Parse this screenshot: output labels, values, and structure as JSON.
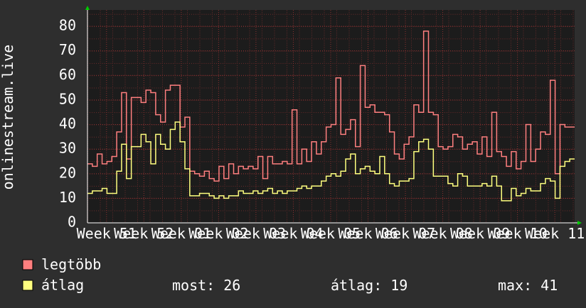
{
  "chart_data": {
    "type": "line",
    "y_label": "onlinestream.live",
    "xlim": [
      -0.51,
      12.53
    ],
    "xticks": [
      {
        "value": 0,
        "label": "Week 51"
      },
      {
        "value": 1,
        "label": "Week 52"
      },
      {
        "value": 2,
        "label": "Week 01"
      },
      {
        "value": 3,
        "label": "Week 02"
      },
      {
        "value": 4,
        "label": "Week 03"
      },
      {
        "value": 5,
        "label": "Week 04"
      },
      {
        "value": 6,
        "label": "Week 05"
      },
      {
        "value": 7,
        "label": "Week 06"
      },
      {
        "value": 8,
        "label": "Week 07"
      },
      {
        "value": 9,
        "label": "Week 08"
      },
      {
        "value": 10,
        "label": "Week 09"
      },
      {
        "value": 11,
        "label": "Week 10"
      },
      {
        "value": 12,
        "label": "Week 11"
      }
    ],
    "ylim": [
      0,
      80
    ],
    "yticks": [
      0,
      10,
      20,
      30,
      40,
      50,
      60,
      70,
      80
    ],
    "grid": true,
    "series": [
      {
        "name": "legtöbb",
        "color": "#ff7f7f",
        "values": [
          24,
          23,
          28,
          24,
          25,
          27,
          37,
          53,
          26,
          51,
          51,
          49,
          54,
          53,
          44,
          41,
          54,
          56,
          56,
          39,
          43,
          21,
          20,
          19,
          21,
          18,
          17,
          23,
          18,
          24,
          20,
          23,
          22,
          23,
          22,
          27,
          18,
          27,
          24,
          24,
          25,
          24,
          46,
          24,
          30,
          25,
          33,
          28,
          33,
          39,
          40,
          59,
          36,
          38,
          42,
          31,
          64,
          47,
          48,
          45,
          45,
          44,
          37,
          28,
          26,
          32,
          35,
          48,
          45,
          78,
          45,
          44,
          31,
          30,
          31,
          36,
          35,
          30,
          32,
          33,
          28,
          35,
          27,
          45,
          29,
          27,
          23,
          29,
          22,
          25,
          40,
          25,
          30,
          37,
          36,
          58,
          20,
          40,
          39,
          39
        ]
      },
      {
        "name": "átlag",
        "color": "#ffff7f",
        "values": [
          12,
          13,
          13,
          14,
          12,
          12,
          21,
          32,
          18,
          31,
          31,
          36,
          33,
          24,
          36,
          32,
          30,
          38,
          41,
          33,
          22,
          11,
          11,
          12,
          12,
          11,
          10,
          11,
          10,
          11,
          11,
          13,
          12,
          12,
          13,
          12,
          13,
          14,
          12,
          13,
          12,
          13,
          13,
          14,
          15,
          14,
          15,
          15,
          17,
          19,
          20,
          19,
          21,
          26,
          28,
          20,
          22,
          23,
          21,
          20,
          27,
          20,
          16,
          15,
          17,
          17,
          18,
          29,
          33,
          34,
          30,
          19,
          19,
          19,
          16,
          15,
          20,
          19,
          15,
          15,
          15,
          16,
          15,
          19,
          15,
          9,
          9,
          14,
          11,
          12,
          14,
          13,
          13,
          16,
          18,
          17,
          10,
          23,
          25,
          26
        ],
        "stats": [
          {
            "label": "most:",
            "value": 26
          },
          {
            "label": "átlag:",
            "value": 19
          },
          {
            "label": "max:",
            "value": 41
          }
        ]
      }
    ]
  }
}
